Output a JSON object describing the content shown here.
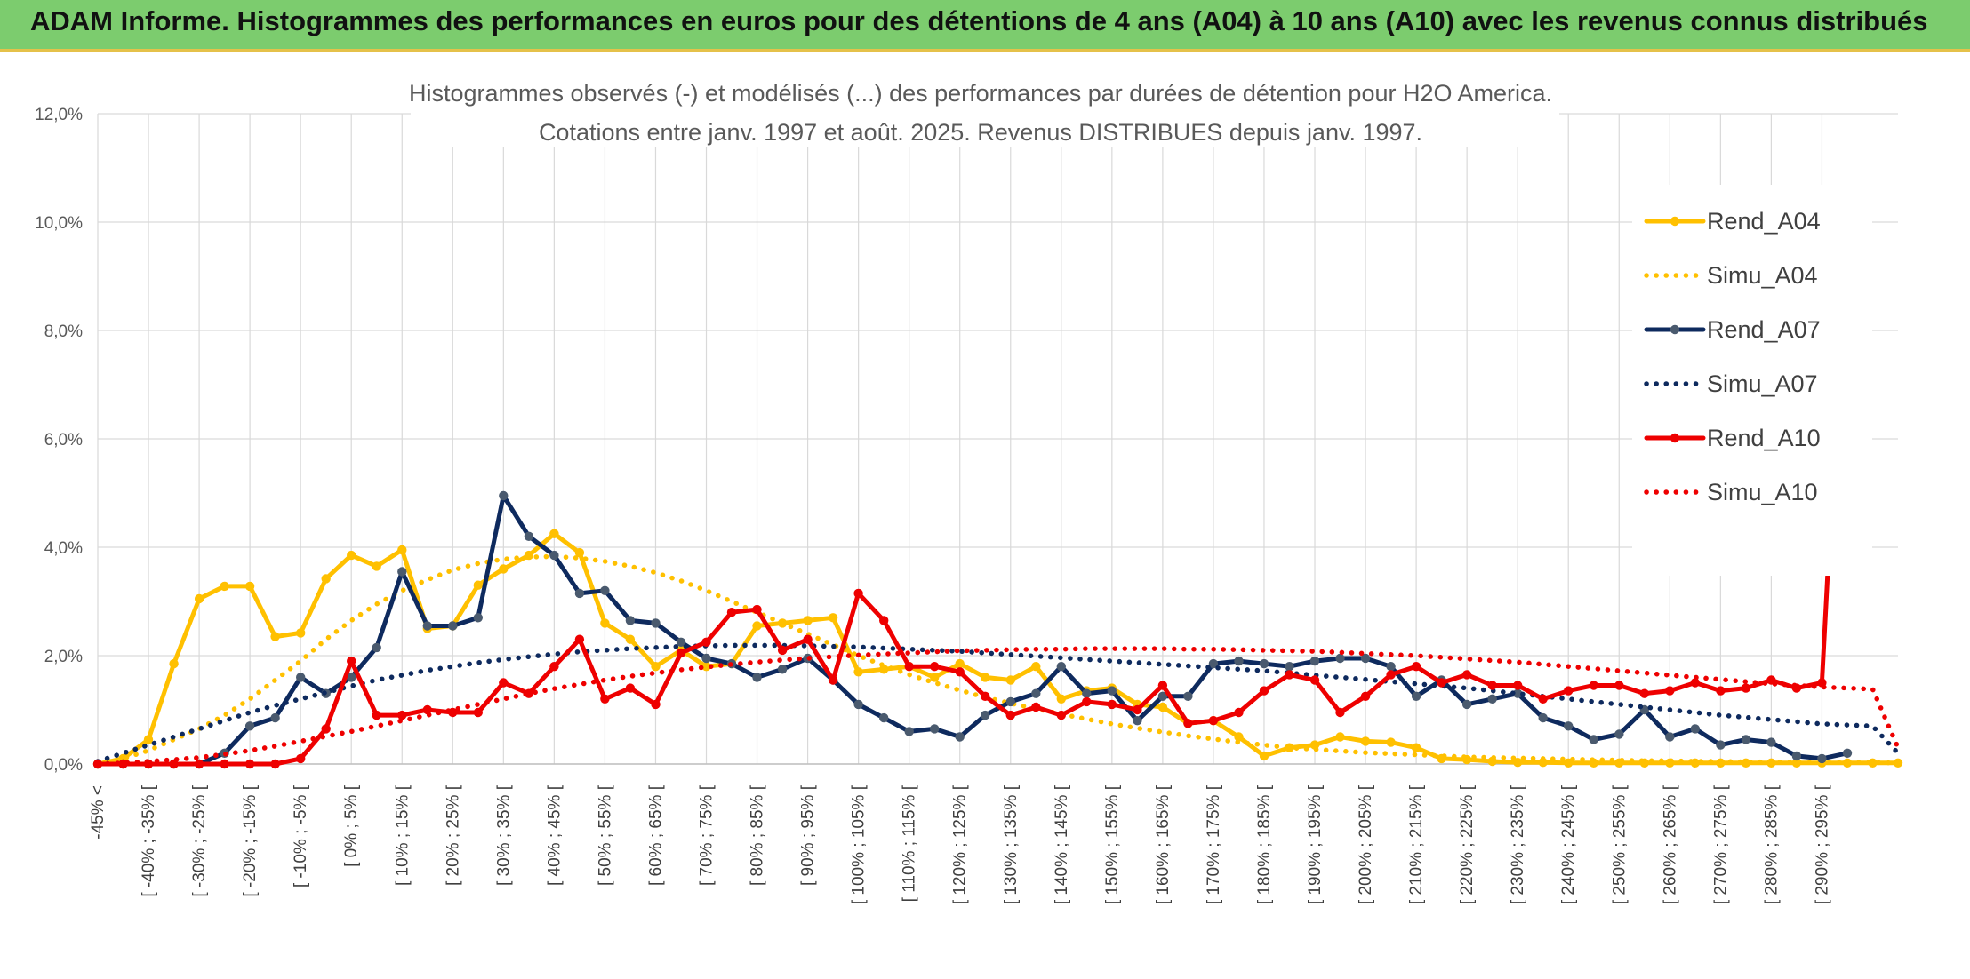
{
  "header": {
    "title": "ADAM Informe. Histogrammes des performances en euros pour des détentions de 4 ans (A04) à 10 ans (A10) avec les revenus connus distribués"
  },
  "colors": {
    "A04": "#ffc000",
    "A07": "#0e2a5e",
    "A07_marker": "#4a5a6e",
    "A10": "#ee0000"
  },
  "chart_data": {
    "type": "line",
    "title": "Histogrammes observés (-) et modélisés (...) des performances par durées de détention pour H2O America.",
    "subtitle": "Cotations entre janv. 1997 et août. 2025. Revenus DISTRIBUES depuis janv. 1997.",
    "y_ticks": [
      "0,0%",
      "2,0%",
      "4,0%",
      "6,0%",
      "8,0%",
      "10,0%",
      "12,0%"
    ],
    "ylim": [
      0,
      12
    ],
    "grid": true,
    "legend_position": "right",
    "x_labels": [
      "-45% <",
      "[ -40% ; -35% [",
      "[ -30% ; -25% [",
      "[ -20% ; -15% [",
      "[ -10% ; -5% [",
      "[ 0% ; 5% [",
      "[ 10% ; 15% [",
      "[ 20% ; 25% [",
      "[ 30% ; 35% [",
      "[ 40% ; 45% [",
      "[ 50% ; 55% [",
      "[ 60% ; 65% [",
      "[ 70% ; 75% [",
      "[ 80% ; 85% [",
      "[ 90% ; 95% [",
      "[ 100% ; 105% [",
      "[ 110% ; 115% [",
      "[ 120% ; 125% [",
      "[ 130% ; 135% [",
      "[ 140% ; 145% [",
      "[ 150% ; 155% [",
      "[ 160% ; 165% [",
      "[ 170% ; 175% [",
      "[ 180% ; 185% [",
      "[ 190% ; 195% [",
      "[ 200% ; 205% [",
      "[ 210% ; 215% [",
      "[ 220% ; 225% [",
      "[ 230% ; 235% [",
      "[ 240% ; 245% [",
      "[ 250% ; 255% [",
      "[ 260% ; 265% [",
      "[ 270% ; 275% [",
      "[ 280% ; 285% [",
      "[ 290% ; 295% ["
    ],
    "series": [
      {
        "name": "Rend_A04",
        "style": "solid",
        "color_key": "A04",
        "values": [
          0.0,
          0.1,
          0.45,
          1.85,
          3.05,
          3.28,
          3.28,
          2.35,
          2.42,
          3.42,
          3.85,
          3.65,
          3.95,
          2.5,
          2.55,
          3.3,
          3.6,
          3.85,
          4.25,
          3.9,
          2.6,
          2.3,
          1.8,
          2.1,
          1.8,
          1.85,
          2.55,
          2.6,
          2.65,
          2.7,
          1.7,
          1.75,
          1.8,
          1.6,
          1.85,
          1.6,
          1.55,
          1.8,
          1.2,
          1.35,
          1.4,
          1.1,
          1.05,
          0.75,
          0.8,
          0.5,
          0.15,
          0.3,
          0.35,
          0.5,
          0.42,
          0.4,
          0.3,
          0.1,
          0.08,
          0.05,
          0.03,
          0.03,
          0.02,
          0.02,
          0.02,
          0.02,
          0.02,
          0.02,
          0.02,
          0.02,
          0.02,
          0.02,
          0.02,
          0.02,
          0.02,
          0.02
        ]
      },
      {
        "name": "Simu_A04",
        "style": "dotted",
        "color_key": "A04",
        "values": [
          0.0,
          0.1,
          0.25,
          0.45,
          0.65,
          0.9,
          1.2,
          1.55,
          1.9,
          2.3,
          2.65,
          2.95,
          3.2,
          3.4,
          3.58,
          3.7,
          3.78,
          3.82,
          3.83,
          3.8,
          3.74,
          3.65,
          3.53,
          3.38,
          3.2,
          3.0,
          2.8,
          2.6,
          2.4,
          2.2,
          2.0,
          1.82,
          1.65,
          1.5,
          1.36,
          1.23,
          1.12,
          1.02,
          0.92,
          0.83,
          0.74,
          0.66,
          0.59,
          0.52,
          0.46,
          0.4,
          0.35,
          0.3,
          0.27,
          0.24,
          0.21,
          0.19,
          0.17,
          0.15,
          0.13,
          0.12,
          0.11,
          0.1,
          0.09,
          0.08,
          0.07,
          0.06,
          0.06,
          0.05,
          0.05,
          0.04,
          0.04,
          0.03,
          0.03,
          0.03,
          0.03,
          0.02
        ]
      },
      {
        "name": "Rend_A07",
        "style": "solid",
        "color_key": "A07",
        "values": [
          0.0,
          0.0,
          0.0,
          0.0,
          0.0,
          0.2,
          0.7,
          0.85,
          1.6,
          1.3,
          1.6,
          2.15,
          3.55,
          2.55,
          2.55,
          2.7,
          4.95,
          4.2,
          3.85,
          3.15,
          3.2,
          2.65,
          2.6,
          2.25,
          1.95,
          1.85,
          1.6,
          1.75,
          1.95,
          1.55,
          1.1,
          0.85,
          0.6,
          0.65,
          0.5,
          0.9,
          1.15,
          1.3,
          1.8,
          1.3,
          1.35,
          0.8,
          1.25,
          1.25,
          1.85,
          1.9,
          1.85,
          1.8,
          1.9,
          1.95,
          1.95,
          1.8,
          1.25,
          1.55,
          1.1,
          1.2,
          1.3,
          0.85,
          0.7,
          0.45,
          0.55,
          1.0,
          0.5,
          0.65,
          0.35,
          0.45,
          0.4,
          0.15,
          0.1,
          0.2
        ]
      },
      {
        "name": "Simu_A07",
        "style": "dotted",
        "color_key": "A07",
        "values": [
          0.05,
          0.2,
          0.35,
          0.5,
          0.65,
          0.8,
          0.95,
          1.08,
          1.2,
          1.32,
          1.44,
          1.55,
          1.64,
          1.73,
          1.8,
          1.87,
          1.93,
          1.98,
          2.03,
          2.07,
          2.1,
          2.13,
          2.15,
          2.17,
          2.18,
          2.19,
          2.19,
          2.19,
          2.18,
          2.17,
          2.16,
          2.14,
          2.12,
          2.1,
          2.08,
          2.05,
          2.02,
          1.99,
          1.96,
          1.93,
          1.9,
          1.87,
          1.84,
          1.81,
          1.78,
          1.75,
          1.72,
          1.68,
          1.64,
          1.6,
          1.56,
          1.52,
          1.48,
          1.44,
          1.4,
          1.35,
          1.3,
          1.25,
          1.2,
          1.15,
          1.1,
          1.05,
          1.0,
          0.95,
          0.9,
          0.86,
          0.82,
          0.78,
          0.74,
          0.72,
          0.7,
          0.2
        ]
      },
      {
        "name": "Rend_A10",
        "style": "solid",
        "color_key": "A10",
        "values": [
          0.0,
          0.0,
          0.0,
          0.0,
          0.0,
          0.0,
          0.0,
          0.0,
          0.1,
          0.65,
          1.9,
          0.9,
          0.9,
          1.0,
          0.95,
          0.95,
          1.5,
          1.3,
          1.8,
          2.3,
          1.2,
          1.4,
          1.1,
          2.05,
          2.25,
          2.8,
          2.85,
          2.1,
          2.3,
          1.55,
          3.15,
          2.65,
          1.8,
          1.8,
          1.7,
          1.25,
          0.9,
          1.05,
          0.9,
          1.15,
          1.1,
          1.0,
          1.45,
          0.75,
          0.8,
          0.95,
          1.35,
          1.65,
          1.55,
          0.95,
          1.25,
          1.65,
          1.8,
          1.5,
          1.65,
          1.45,
          1.45,
          1.2,
          1.35,
          1.45,
          1.45,
          1.3,
          1.35,
          1.5,
          1.35,
          1.4,
          1.55,
          1.4,
          1.5,
          10.4
        ]
      },
      {
        "name": "Simu_A10",
        "style": "dotted",
        "color_key": "A10",
        "values": [
          0.0,
          0.02,
          0.05,
          0.08,
          0.12,
          0.18,
          0.25,
          0.33,
          0.42,
          0.51,
          0.6,
          0.7,
          0.8,
          0.9,
          1.0,
          1.1,
          1.2,
          1.3,
          1.39,
          1.47,
          1.55,
          1.62,
          1.68,
          1.74,
          1.79,
          1.84,
          1.88,
          1.92,
          1.95,
          1.98,
          2.01,
          2.03,
          2.05,
          2.07,
          2.09,
          2.1,
          2.11,
          2.12,
          2.12,
          2.13,
          2.13,
          2.13,
          2.13,
          2.12,
          2.12,
          2.11,
          2.1,
          2.09,
          2.08,
          2.06,
          2.04,
          2.02,
          2.0,
          1.97,
          1.94,
          1.91,
          1.88,
          1.84,
          1.8,
          1.76,
          1.72,
          1.68,
          1.64,
          1.6,
          1.56,
          1.52,
          1.48,
          1.45,
          1.42,
          1.4,
          1.38,
          0.3
        ]
      }
    ]
  }
}
